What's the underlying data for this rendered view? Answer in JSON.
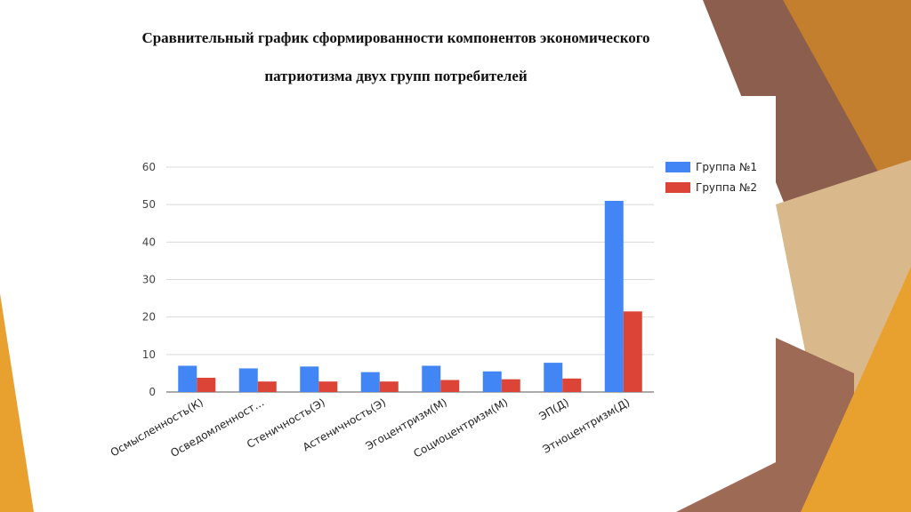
{
  "slide": {
    "title_line1": "Сравнительный график сформированности компонентов экономического",
    "title_line2": "патриотизма  двух групп потребителей"
  },
  "colors": {
    "series1": "#4285f4",
    "series2": "#db4437",
    "decor_brown": "#8b5e4e",
    "decor_orange": "#e8a12f",
    "decor_tan": "#d9b88c"
  },
  "chart_data": {
    "type": "bar",
    "categories": [
      "Осмысленность(К)",
      "Осведомленност…",
      "Стеничность(Э)",
      "Астеничность(Э)",
      "Эгоцентризм(М)",
      "Социоцентризм(М)",
      "ЭП(Д)",
      "Этноцентризм(Д)"
    ],
    "series": [
      {
        "name": "Группа №1",
        "values": [
          7,
          6.3,
          6.8,
          5.3,
          7,
          5.5,
          7.8,
          51
        ]
      },
      {
        "name": "Группа №2",
        "values": [
          3.8,
          2.8,
          2.8,
          2.8,
          3.2,
          3.4,
          3.6,
          21.5
        ]
      }
    ],
    "ylim": [
      0,
      60
    ],
    "yticks": [
      0,
      10,
      20,
      30,
      40,
      50,
      60
    ],
    "grid": true,
    "legend": "right"
  }
}
